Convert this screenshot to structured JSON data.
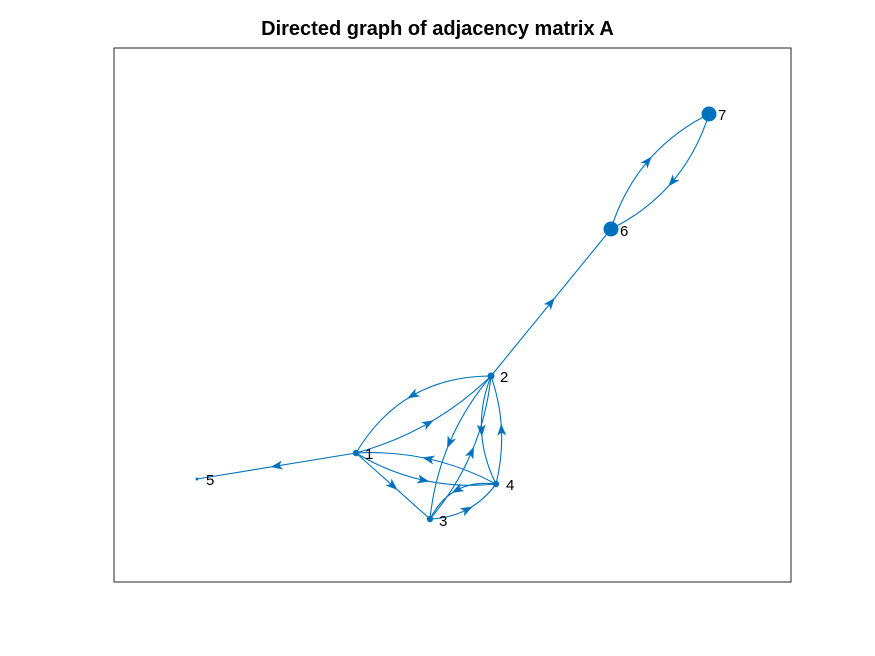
{
  "title": "Directed graph of adjacency matrix A",
  "colors": {
    "edge": "#0072BD",
    "node": "#0072BD",
    "frame": "#262626",
    "background": "#ffffff"
  },
  "nodes": [
    {
      "id": "1",
      "label": "1"
    },
    {
      "id": "2",
      "label": "2"
    },
    {
      "id": "3",
      "label": "3"
    },
    {
      "id": "4",
      "label": "4"
    },
    {
      "id": "5",
      "label": "5"
    },
    {
      "id": "6",
      "label": "6"
    },
    {
      "id": "7",
      "label": "7"
    }
  ],
  "edges": [
    {
      "from": "1",
      "to": "5"
    },
    {
      "from": "1",
      "to": "2"
    },
    {
      "from": "2",
      "to": "1"
    },
    {
      "from": "1",
      "to": "3"
    },
    {
      "from": "1",
      "to": "4"
    },
    {
      "from": "4",
      "to": "1"
    },
    {
      "from": "2",
      "to": "6"
    },
    {
      "from": "6",
      "to": "7"
    },
    {
      "from": "7",
      "to": "6"
    },
    {
      "from": "3",
      "to": "2"
    },
    {
      "from": "2",
      "to": "3"
    },
    {
      "from": "3",
      "to": "4"
    },
    {
      "from": "4",
      "to": "3"
    },
    {
      "from": "4",
      "to": "2"
    },
    {
      "from": "2",
      "to": "4"
    }
  ]
}
